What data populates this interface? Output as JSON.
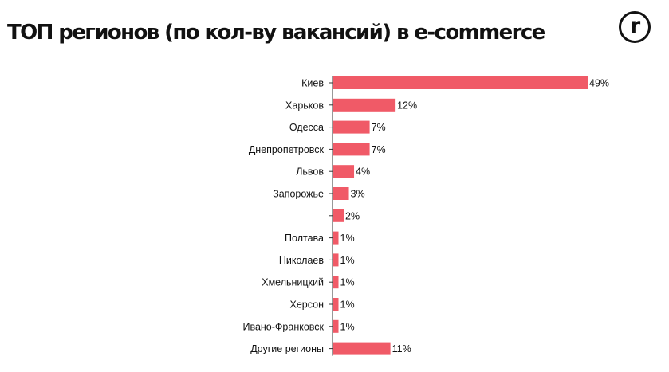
{
  "header": {
    "title": "ТОП регионов (по кол-ву вакансий) в e-commerce",
    "logo_letter": "r"
  },
  "colors": {
    "bar": "#f05a67",
    "axis": "#333333",
    "text": "#111111"
  },
  "chart_data": {
    "type": "bar",
    "orientation": "horizontal",
    "title": "ТОП регионов (по кол-ву вакансий) в e-commerce",
    "xlabel": "",
    "ylabel": "",
    "categories": [
      "Киев",
      "Харьков",
      "Одесса",
      "Днепропетровск",
      "Львов",
      "Запорожье",
      "",
      "Полтава",
      "Николаев",
      "Хмельницкий",
      "Херсон",
      "Ивано-Франковск",
      "Другие регионы"
    ],
    "values": [
      49,
      12,
      7,
      7,
      4,
      3,
      2,
      1,
      1,
      1,
      1,
      1,
      11
    ],
    "value_labels": [
      "49%",
      "12%",
      "7%",
      "7%",
      "4%",
      "3%",
      "2%",
      "1%",
      "1%",
      "1%",
      "1%",
      "1%",
      "11%"
    ],
    "xlim": [
      0,
      49
    ],
    "grid": false,
    "legend": "none"
  }
}
